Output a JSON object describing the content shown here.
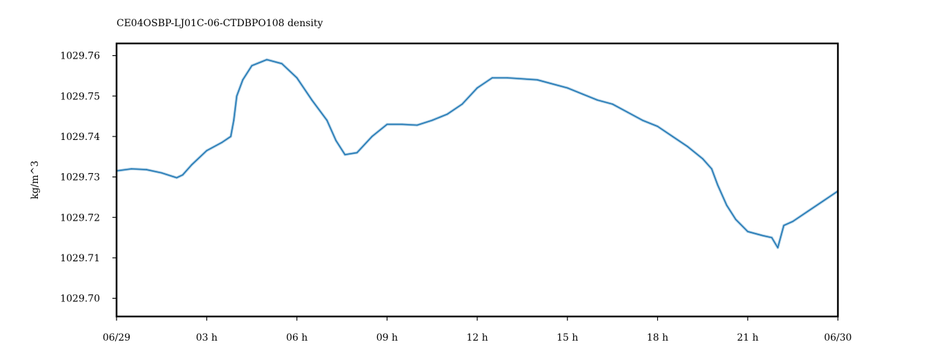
{
  "chart_data": {
    "type": "line",
    "title": "CE04OSBP-LJ01C-06-CTDBPO108 density",
    "xlabel": "",
    "ylabel": "kg/m^3",
    "x_unit": "hours",
    "xlim": [
      0,
      24
    ],
    "ylim": [
      1029.6955,
      1029.763
    ],
    "x_ticks": [
      0,
      3,
      6,
      9,
      12,
      15,
      18,
      21,
      24
    ],
    "x_tick_labels": [
      "06/29",
      "03 h",
      "06 h",
      "09 h",
      "12 h",
      "15 h",
      "18 h",
      "21 h",
      "06/30"
    ],
    "y_ticks": [
      1029.7,
      1029.71,
      1029.72,
      1029.73,
      1029.74,
      1029.75,
      1029.76
    ],
    "y_tick_labels": [
      "1029.70",
      "1029.71",
      "1029.72",
      "1029.73",
      "1029.74",
      "1029.75",
      "1029.76"
    ],
    "grid": false,
    "series": [
      {
        "color": "#1f77b4",
        "x": [
          0.0,
          0.5,
          1.0,
          1.5,
          2.0,
          2.2,
          2.5,
          3.0,
          3.5,
          3.8,
          3.9,
          4.0,
          4.2,
          4.5,
          5.0,
          5.5,
          6.0,
          6.5,
          7.0,
          7.3,
          7.6,
          8.0,
          8.5,
          9.0,
          9.5,
          10.0,
          10.5,
          11.0,
          11.5,
          12.0,
          12.5,
          13.0,
          14.0,
          15.0,
          15.5,
          16.0,
          16.5,
          17.0,
          17.5,
          18.0,
          18.5,
          19.0,
          19.5,
          19.8,
          20.0,
          20.3,
          20.6,
          21.0,
          21.5,
          21.8,
          22.0,
          22.2,
          22.5,
          23.0,
          23.5,
          24.0
        ],
        "y": [
          1029.7315,
          1029.732,
          1029.7318,
          1029.731,
          1029.7298,
          1029.7305,
          1029.733,
          1029.7365,
          1029.7385,
          1029.74,
          1029.744,
          1029.75,
          1029.754,
          1029.7575,
          1029.759,
          1029.758,
          1029.7545,
          1029.749,
          1029.744,
          1029.739,
          1029.7355,
          1029.736,
          1029.74,
          1029.743,
          1029.743,
          1029.7428,
          1029.744,
          1029.7455,
          1029.748,
          1029.752,
          1029.7545,
          1029.7545,
          1029.754,
          1029.752,
          1029.7505,
          1029.749,
          1029.748,
          1029.746,
          1029.744,
          1029.7425,
          1029.74,
          1029.7375,
          1029.7345,
          1029.732,
          1029.728,
          1029.723,
          1029.7195,
          1029.7165,
          1029.7155,
          1029.715,
          1029.7125,
          1029.718,
          1029.719,
          1029.7215,
          1029.724,
          1029.7265
        ]
      }
    ]
  }
}
